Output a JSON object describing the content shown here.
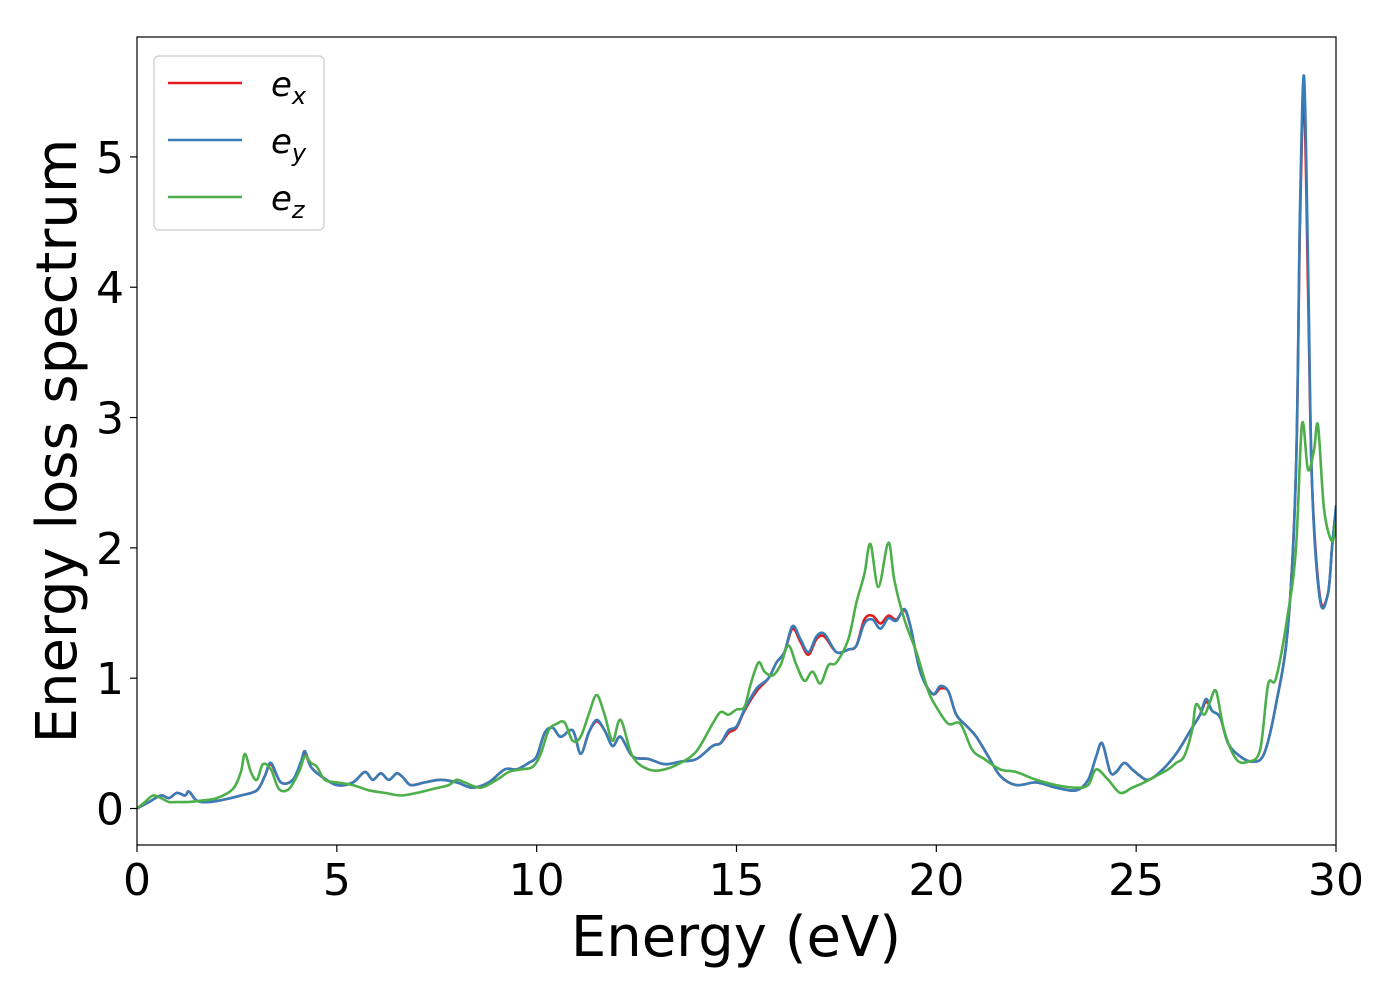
{
  "chart_data": {
    "type": "line",
    "title": "",
    "xlabel": "Energy (eV)",
    "ylabel": "Energy loss spectrum",
    "xlim": [
      0,
      30
    ],
    "ylim": [
      -0.28,
      5.92
    ],
    "xticks": [
      0,
      5,
      10,
      15,
      20,
      25,
      30
    ],
    "yticks": [
      0,
      1,
      2,
      3,
      4,
      5
    ],
    "xtick_labels": [
      "0",
      "5",
      "10",
      "15",
      "20",
      "25",
      "30"
    ],
    "ytick_labels": [
      "0",
      "1",
      "2",
      "3",
      "4",
      "5"
    ],
    "grid": false,
    "legend_position": "top-left",
    "series": [
      {
        "name": "e_x",
        "label_base": "e",
        "label_sub": "x",
        "color": "#e41a1c",
        "x": [
          0,
          0.3,
          0.6,
          0.8,
          1.0,
          1.2,
          1.3,
          1.5,
          1.8,
          2.2,
          2.6,
          3.0,
          3.2,
          3.35,
          3.6,
          3.9,
          4.1,
          4.2,
          4.35,
          4.6,
          5.0,
          5.4,
          5.7,
          5.9,
          6.1,
          6.3,
          6.5,
          6.65,
          6.85,
          7.2,
          7.6,
          8.0,
          8.4,
          8.8,
          9.2,
          9.5,
          9.8,
          10.0,
          10.2,
          10.4,
          10.6,
          10.9,
          11.1,
          11.3,
          11.5,
          11.7,
          11.9,
          12.1,
          12.4,
          12.8,
          13.2,
          13.6,
          14.0,
          14.4,
          14.6,
          14.8,
          15.0,
          15.2,
          15.5,
          15.8,
          16.0,
          16.2,
          16.4,
          16.6,
          16.8,
          17.0,
          17.2,
          17.5,
          17.8,
          18.0,
          18.2,
          18.4,
          18.6,
          18.8,
          19.0,
          19.2,
          19.35,
          19.6,
          19.9,
          20.1,
          20.3,
          20.5,
          20.8,
          21.0,
          21.3,
          21.6,
          22.0,
          22.5,
          23.0,
          23.5,
          23.8,
          24.0,
          24.15,
          24.35,
          24.5,
          24.7,
          24.9,
          25.1,
          25.3,
          25.6,
          26.0,
          26.4,
          26.6,
          26.75,
          26.9,
          27.1,
          27.3,
          27.6,
          27.9,
          28.2,
          28.5,
          28.8,
          29.0,
          29.1,
          29.2,
          29.3,
          29.4,
          29.6,
          29.8,
          29.9,
          30.0
        ],
        "y": [
          0.0,
          0.05,
          0.1,
          0.08,
          0.12,
          0.1,
          0.13,
          0.06,
          0.05,
          0.07,
          0.1,
          0.14,
          0.25,
          0.34,
          0.2,
          0.22,
          0.35,
          0.43,
          0.32,
          0.25,
          0.18,
          0.2,
          0.28,
          0.22,
          0.27,
          0.22,
          0.27,
          0.24,
          0.18,
          0.2,
          0.22,
          0.2,
          0.16,
          0.2,
          0.3,
          0.3,
          0.35,
          0.4,
          0.58,
          0.62,
          0.55,
          0.6,
          0.42,
          0.58,
          0.67,
          0.6,
          0.48,
          0.55,
          0.4,
          0.38,
          0.34,
          0.36,
          0.38,
          0.48,
          0.5,
          0.58,
          0.62,
          0.75,
          0.9,
          1.0,
          1.12,
          1.2,
          1.38,
          1.28,
          1.18,
          1.3,
          1.32,
          1.2,
          1.22,
          1.25,
          1.45,
          1.48,
          1.42,
          1.48,
          1.45,
          1.52,
          1.4,
          1.05,
          0.88,
          0.92,
          0.9,
          0.72,
          0.62,
          0.55,
          0.4,
          0.25,
          0.18,
          0.2,
          0.16,
          0.14,
          0.22,
          0.4,
          0.5,
          0.28,
          0.28,
          0.35,
          0.3,
          0.25,
          0.22,
          0.28,
          0.42,
          0.62,
          0.72,
          0.82,
          0.75,
          0.7,
          0.5,
          0.4,
          0.36,
          0.42,
          0.8,
          1.4,
          2.6,
          4.5,
          5.45,
          4.0,
          2.5,
          1.62,
          1.65,
          2.0,
          2.3
        ]
      },
      {
        "name": "e_y",
        "label_base": "e",
        "label_sub": "y",
        "color": "#377eb8",
        "x": [
          0,
          0.3,
          0.6,
          0.8,
          1.0,
          1.2,
          1.3,
          1.5,
          1.8,
          2.2,
          2.6,
          3.0,
          3.2,
          3.35,
          3.6,
          3.9,
          4.1,
          4.2,
          4.35,
          4.6,
          5.0,
          5.4,
          5.7,
          5.9,
          6.1,
          6.3,
          6.5,
          6.65,
          6.85,
          7.2,
          7.6,
          8.0,
          8.4,
          8.8,
          9.2,
          9.5,
          9.8,
          10.0,
          10.2,
          10.4,
          10.6,
          10.9,
          11.1,
          11.3,
          11.5,
          11.7,
          11.9,
          12.1,
          12.4,
          12.8,
          13.2,
          13.6,
          14.0,
          14.4,
          14.6,
          14.8,
          15.0,
          15.2,
          15.5,
          15.8,
          16.0,
          16.2,
          16.4,
          16.6,
          16.8,
          17.0,
          17.2,
          17.5,
          17.8,
          18.0,
          18.2,
          18.4,
          18.6,
          18.8,
          19.0,
          19.2,
          19.35,
          19.6,
          19.9,
          20.1,
          20.3,
          20.5,
          20.8,
          21.0,
          21.3,
          21.6,
          22.0,
          22.5,
          23.0,
          23.5,
          23.8,
          24.0,
          24.15,
          24.35,
          24.5,
          24.7,
          24.9,
          25.1,
          25.3,
          25.6,
          26.0,
          26.4,
          26.6,
          26.75,
          26.9,
          27.1,
          27.3,
          27.6,
          27.9,
          28.2,
          28.5,
          28.8,
          29.0,
          29.1,
          29.2,
          29.3,
          29.4,
          29.6,
          29.8,
          29.9,
          30.0
        ],
        "y": [
          0.0,
          0.05,
          0.1,
          0.08,
          0.12,
          0.1,
          0.13,
          0.06,
          0.05,
          0.07,
          0.1,
          0.14,
          0.25,
          0.35,
          0.2,
          0.22,
          0.36,
          0.44,
          0.32,
          0.25,
          0.18,
          0.2,
          0.28,
          0.22,
          0.27,
          0.22,
          0.27,
          0.24,
          0.18,
          0.2,
          0.22,
          0.2,
          0.16,
          0.2,
          0.3,
          0.3,
          0.35,
          0.4,
          0.58,
          0.62,
          0.55,
          0.6,
          0.42,
          0.58,
          0.68,
          0.6,
          0.48,
          0.55,
          0.4,
          0.38,
          0.34,
          0.36,
          0.38,
          0.48,
          0.5,
          0.6,
          0.63,
          0.76,
          0.92,
          1.0,
          1.12,
          1.2,
          1.4,
          1.3,
          1.2,
          1.32,
          1.34,
          1.2,
          1.22,
          1.25,
          1.42,
          1.45,
          1.38,
          1.46,
          1.44,
          1.53,
          1.4,
          1.05,
          0.88,
          0.94,
          0.9,
          0.72,
          0.62,
          0.55,
          0.4,
          0.25,
          0.18,
          0.2,
          0.16,
          0.14,
          0.22,
          0.4,
          0.5,
          0.28,
          0.28,
          0.35,
          0.3,
          0.25,
          0.22,
          0.28,
          0.42,
          0.62,
          0.72,
          0.84,
          0.75,
          0.7,
          0.5,
          0.4,
          0.36,
          0.42,
          0.8,
          1.4,
          2.6,
          4.6,
          5.62,
          4.2,
          2.5,
          1.6,
          1.65,
          2.0,
          2.32
        ]
      },
      {
        "name": "e_z",
        "label_base": "e",
        "label_sub": "z",
        "color": "#4daf4a",
        "x": [
          0,
          0.2,
          0.4,
          0.6,
          0.8,
          1.0,
          1.3,
          1.6,
          2.0,
          2.4,
          2.6,
          2.7,
          2.85,
          3.0,
          3.15,
          3.35,
          3.55,
          3.8,
          4.05,
          4.2,
          4.35,
          4.5,
          4.7,
          5.0,
          5.4,
          5.8,
          6.2,
          6.6,
          7.0,
          7.4,
          7.8,
          8.0,
          8.2,
          8.6,
          9.0,
          9.3,
          9.6,
          9.9,
          10.1,
          10.3,
          10.5,
          10.7,
          10.9,
          11.1,
          11.3,
          11.5,
          11.7,
          11.9,
          12.1,
          12.4,
          12.8,
          13.2,
          13.6,
          14.0,
          14.4,
          14.6,
          14.8,
          15.0,
          15.2,
          15.35,
          15.55,
          15.7,
          15.9,
          16.1,
          16.3,
          16.5,
          16.7,
          16.9,
          17.1,
          17.3,
          17.5,
          17.8,
          18.0,
          18.2,
          18.35,
          18.55,
          18.8,
          18.95,
          19.2,
          19.5,
          19.8,
          20.0,
          20.3,
          20.6,
          20.9,
          21.2,
          21.6,
          22.0,
          22.5,
          23.0,
          23.5,
          23.8,
          24.0,
          24.3,
          24.6,
          24.9,
          25.2,
          25.5,
          25.8,
          26.0,
          26.2,
          26.4,
          26.5,
          26.7,
          26.85,
          27.0,
          27.2,
          27.5,
          27.8,
          28.1,
          28.3,
          28.5,
          28.8,
          29.0,
          29.15,
          29.3,
          29.45,
          29.55,
          29.7,
          29.9,
          30.0
        ],
        "y": [
          0.0,
          0.05,
          0.1,
          0.08,
          0.05,
          0.05,
          0.05,
          0.06,
          0.08,
          0.15,
          0.28,
          0.42,
          0.28,
          0.22,
          0.34,
          0.3,
          0.15,
          0.15,
          0.28,
          0.4,
          0.35,
          0.32,
          0.22,
          0.2,
          0.18,
          0.14,
          0.12,
          0.1,
          0.12,
          0.15,
          0.18,
          0.22,
          0.2,
          0.16,
          0.22,
          0.28,
          0.3,
          0.32,
          0.42,
          0.6,
          0.65,
          0.66,
          0.52,
          0.55,
          0.72,
          0.87,
          0.72,
          0.52,
          0.68,
          0.4,
          0.3,
          0.3,
          0.35,
          0.44,
          0.65,
          0.74,
          0.72,
          0.76,
          0.78,
          0.95,
          1.12,
          1.05,
          1.02,
          1.1,
          1.25,
          1.1,
          0.98,
          1.05,
          0.96,
          1.1,
          1.12,
          1.3,
          1.58,
          1.8,
          2.03,
          1.7,
          2.04,
          1.75,
          1.45,
          1.2,
          0.9,
          0.78,
          0.65,
          0.65,
          0.45,
          0.38,
          0.3,
          0.28,
          0.22,
          0.18,
          0.16,
          0.18,
          0.3,
          0.22,
          0.12,
          0.16,
          0.2,
          0.25,
          0.3,
          0.35,
          0.4,
          0.6,
          0.8,
          0.72,
          0.82,
          0.9,
          0.6,
          0.38,
          0.36,
          0.45,
          0.95,
          1.0,
          1.5,
          2.0,
          2.95,
          2.6,
          2.75,
          2.94,
          2.3,
          2.05,
          2.2
        ]
      }
    ]
  }
}
